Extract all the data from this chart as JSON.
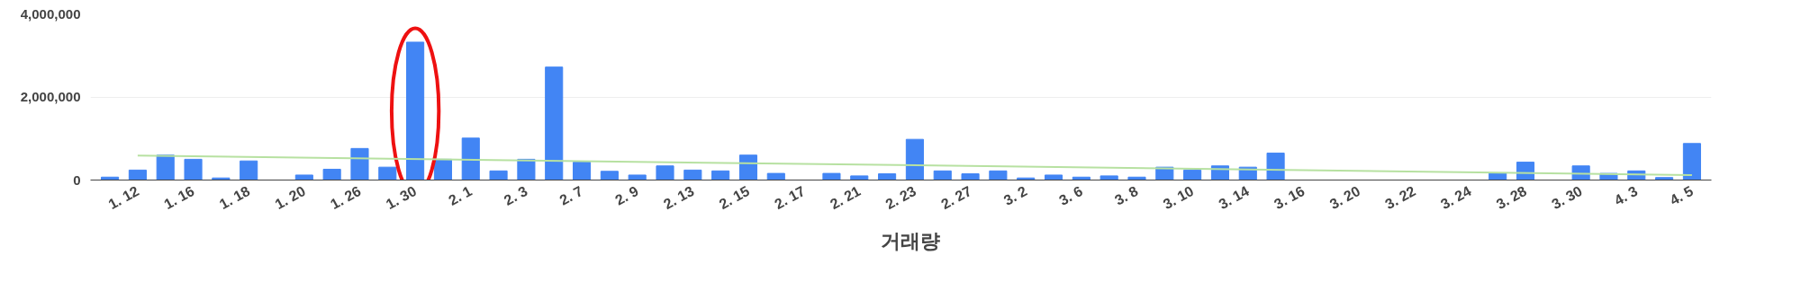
{
  "chart_data": {
    "type": "bar",
    "categories": [
      null,
      "1. 12",
      null,
      "1. 16",
      null,
      "1. 18",
      null,
      "1. 20",
      null,
      "1. 26",
      null,
      "1. 30",
      null,
      "2. 1",
      null,
      "2. 3",
      null,
      "2. 7",
      null,
      "2. 9",
      null,
      "2. 13",
      null,
      "2. 15",
      null,
      "2. 17",
      null,
      "2. 21",
      null,
      "2. 23",
      null,
      "2. 27",
      null,
      "3. 2",
      null,
      "3. 6",
      null,
      "3. 8",
      null,
      "3. 10",
      null,
      "3. 14",
      null,
      "3. 16",
      null,
      "3. 20",
      null,
      "3. 22",
      null,
      "3. 24",
      null,
      "3. 28",
      null,
      "3. 30",
      null,
      "4. 3",
      null,
      "4. 5"
    ],
    "series": [
      {
        "name": "거래량",
        "color": "#4285f4",
        "values": [
          70000,
          240000,
          600000,
          500000,
          50000,
          460000,
          0,
          120000,
          260000,
          760000,
          310000,
          3320000,
          500000,
          1010000,
          220000,
          500000,
          2720000,
          430000,
          210000,
          120000,
          340000,
          240000,
          220000,
          600000,
          160000,
          0,
          160000,
          100000,
          150000,
          980000,
          220000,
          150000,
          220000,
          50000,
          120000,
          70000,
          100000,
          70000,
          310000,
          240000,
          340000,
          310000,
          650000,
          0,
          0,
          0,
          0,
          0,
          0,
          0,
          160000,
          430000,
          0,
          340000,
          160000,
          220000,
          60000,
          880000
        ]
      },
      {
        "type": "line",
        "color": "#b7e1a1",
        "x": [
          "1. 12",
          "4. 5"
        ],
        "values": [
          590000,
          120000
        ]
      }
    ],
    "ylim": [
      0,
      4000000
    ],
    "yticks": [
      0,
      {
        "value": 2000000,
        "label": "2,000,000"
      },
      {
        "value": 4000000,
        "label": "4,000,000"
      }
    ],
    "grid": "y",
    "legend": "bottom"
  }
}
